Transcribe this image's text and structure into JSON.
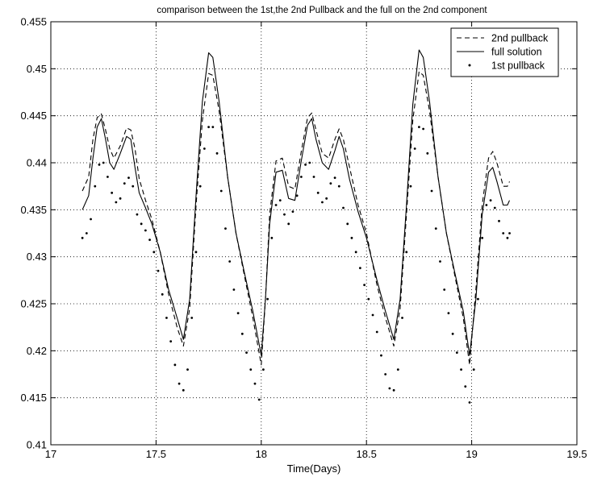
{
  "chart_data": {
    "type": "line",
    "title": "comparison between the 1st,the 2nd Pullback and the full on the 2nd component",
    "xlabel": "Time(Days)",
    "ylabel": "",
    "xlim": [
      17,
      19.5
    ],
    "ylim": [
      0.41,
      0.455
    ],
    "xticks": [
      17,
      17.5,
      18,
      18.5,
      19,
      19.5
    ],
    "xtick_labels": [
      "17",
      "17.5",
      "18",
      "18.5",
      "19",
      "19.5"
    ],
    "yticks": [
      0.41,
      0.415,
      0.42,
      0.425,
      0.43,
      0.435,
      0.44,
      0.445,
      0.45,
      0.455
    ],
    "ytick_labels": [
      "0.41",
      "0.415",
      "0.42",
      "0.425",
      "0.43",
      "0.435",
      "0.44",
      "0.445",
      "0.45",
      "0.455"
    ],
    "grid": true,
    "legend_position": "top-right",
    "series": [
      {
        "name": "2nd pullback",
        "style": "dashed",
        "color": "#000000",
        "points": [
          [
            17.15,
            0.437
          ],
          [
            17.18,
            0.4385
          ],
          [
            17.2,
            0.4425
          ],
          [
            17.22,
            0.4448
          ],
          [
            17.24,
            0.4452
          ],
          [
            17.26,
            0.4435
          ],
          [
            17.28,
            0.4415
          ],
          [
            17.3,
            0.4405
          ],
          [
            17.33,
            0.4418
          ],
          [
            17.36,
            0.4437
          ],
          [
            17.38,
            0.4435
          ],
          [
            17.4,
            0.4415
          ],
          [
            17.42,
            0.4383
          ],
          [
            17.45,
            0.436
          ],
          [
            17.48,
            0.434
          ],
          [
            17.52,
            0.4305
          ],
          [
            17.56,
            0.426
          ],
          [
            17.6,
            0.4225
          ],
          [
            17.63,
            0.4205
          ],
          [
            17.66,
            0.4245
          ],
          [
            17.69,
            0.4355
          ],
          [
            17.72,
            0.4445
          ],
          [
            17.75,
            0.4495
          ],
          [
            17.77,
            0.4493
          ],
          [
            17.8,
            0.4455
          ],
          [
            17.84,
            0.4385
          ],
          [
            17.88,
            0.4325
          ],
          [
            17.92,
            0.428
          ],
          [
            17.96,
            0.4235
          ],
          [
            18,
            0.4185
          ],
          [
            18.02,
            0.4255
          ],
          [
            18.04,
            0.4345
          ],
          [
            18.07,
            0.4402
          ],
          [
            18.1,
            0.4405
          ],
          [
            18.13,
            0.4375
          ],
          [
            18.16,
            0.4372
          ],
          [
            18.19,
            0.4412
          ],
          [
            18.22,
            0.4448
          ],
          [
            18.24,
            0.4453
          ],
          [
            18.26,
            0.4435
          ],
          [
            18.29,
            0.441
          ],
          [
            18.32,
            0.4405
          ],
          [
            18.35,
            0.4425
          ],
          [
            18.37,
            0.4436
          ],
          [
            18.39,
            0.4425
          ],
          [
            18.42,
            0.4395
          ],
          [
            18.46,
            0.4355
          ],
          [
            18.5,
            0.4325
          ],
          [
            18.55,
            0.427
          ],
          [
            18.59,
            0.4235
          ],
          [
            18.63,
            0.4205
          ],
          [
            18.66,
            0.4245
          ],
          [
            18.69,
            0.4345
          ],
          [
            18.72,
            0.4445
          ],
          [
            18.75,
            0.4497
          ],
          [
            18.77,
            0.4493
          ],
          [
            18.8,
            0.4455
          ],
          [
            18.84,
            0.4385
          ],
          [
            18.88,
            0.4325
          ],
          [
            18.92,
            0.428
          ],
          [
            18.96,
            0.4235
          ],
          [
            18.99,
            0.4185
          ],
          [
            19.02,
            0.4265
          ],
          [
            19.05,
            0.4355
          ],
          [
            19.08,
            0.4405
          ],
          [
            19.1,
            0.4412
          ],
          [
            19.12,
            0.44
          ],
          [
            19.15,
            0.4375
          ],
          [
            19.17,
            0.4375
          ],
          [
            19.18,
            0.438
          ]
        ]
      },
      {
        "name": "full solution",
        "style": "solid",
        "color": "#000000",
        "points": [
          [
            17.15,
            0.435
          ],
          [
            17.18,
            0.4365
          ],
          [
            17.2,
            0.4405
          ],
          [
            17.22,
            0.4438
          ],
          [
            17.24,
            0.4447
          ],
          [
            17.26,
            0.4425
          ],
          [
            17.28,
            0.44
          ],
          [
            17.3,
            0.4393
          ],
          [
            17.33,
            0.441
          ],
          [
            17.36,
            0.4428
          ],
          [
            17.38,
            0.4425
          ],
          [
            17.4,
            0.4395
          ],
          [
            17.42,
            0.4368
          ],
          [
            17.45,
            0.4352
          ],
          [
            17.48,
            0.4335
          ],
          [
            17.52,
            0.4305
          ],
          [
            17.56,
            0.4265
          ],
          [
            17.6,
            0.4235
          ],
          [
            17.63,
            0.4212
          ],
          [
            17.66,
            0.4255
          ],
          [
            17.69,
            0.4365
          ],
          [
            17.72,
            0.4465
          ],
          [
            17.75,
            0.4517
          ],
          [
            17.77,
            0.4512
          ],
          [
            17.8,
            0.4465
          ],
          [
            17.84,
            0.4385
          ],
          [
            17.88,
            0.4325
          ],
          [
            17.92,
            0.4283
          ],
          [
            17.96,
            0.4242
          ],
          [
            18,
            0.4195
          ],
          [
            18.02,
            0.4255
          ],
          [
            18.04,
            0.4335
          ],
          [
            18.07,
            0.439
          ],
          [
            18.1,
            0.4392
          ],
          [
            18.13,
            0.4362
          ],
          [
            18.16,
            0.436
          ],
          [
            18.19,
            0.4402
          ],
          [
            18.22,
            0.444
          ],
          [
            18.24,
            0.4447
          ],
          [
            18.26,
            0.4425
          ],
          [
            18.29,
            0.44
          ],
          [
            18.32,
            0.4393
          ],
          [
            18.35,
            0.4413
          ],
          [
            18.37,
            0.4428
          ],
          [
            18.39,
            0.4415
          ],
          [
            18.42,
            0.4382
          ],
          [
            18.46,
            0.4348
          ],
          [
            18.5,
            0.432
          ],
          [
            18.55,
            0.4275
          ],
          [
            18.59,
            0.4242
          ],
          [
            18.63,
            0.4212
          ],
          [
            18.66,
            0.4255
          ],
          [
            18.69,
            0.4355
          ],
          [
            18.72,
            0.4462
          ],
          [
            18.75,
            0.452
          ],
          [
            18.77,
            0.4512
          ],
          [
            18.8,
            0.4465
          ],
          [
            18.84,
            0.4385
          ],
          [
            18.88,
            0.4325
          ],
          [
            18.92,
            0.4283
          ],
          [
            18.96,
            0.4242
          ],
          [
            18.99,
            0.4195
          ],
          [
            19.02,
            0.4255
          ],
          [
            19.05,
            0.4345
          ],
          [
            19.08,
            0.439
          ],
          [
            19.1,
            0.4395
          ],
          [
            19.12,
            0.438
          ],
          [
            19.15,
            0.4355
          ],
          [
            19.17,
            0.4355
          ],
          [
            19.18,
            0.436
          ]
        ]
      },
      {
        "name": "1st pullback",
        "style": "dotted",
        "color": "#000000",
        "points": [
          [
            17.15,
            0.432
          ],
          [
            17.17,
            0.4325
          ],
          [
            17.19,
            0.434
          ],
          [
            17.21,
            0.4375
          ],
          [
            17.23,
            0.4398
          ],
          [
            17.25,
            0.44
          ],
          [
            17.27,
            0.4385
          ],
          [
            17.29,
            0.4368
          ],
          [
            17.31,
            0.4358
          ],
          [
            17.33,
            0.4362
          ],
          [
            17.35,
            0.4378
          ],
          [
            17.37,
            0.4384
          ],
          [
            17.39,
            0.4375
          ],
          [
            17.41,
            0.4345
          ],
          [
            17.43,
            0.4335
          ],
          [
            17.45,
            0.4328
          ],
          [
            17.47,
            0.4318
          ],
          [
            17.49,
            0.4305
          ],
          [
            17.51,
            0.4285
          ],
          [
            17.53,
            0.426
          ],
          [
            17.55,
            0.4235
          ],
          [
            17.57,
            0.421
          ],
          [
            17.59,
            0.4185
          ],
          [
            17.61,
            0.4165
          ],
          [
            17.63,
            0.4158
          ],
          [
            17.65,
            0.418
          ],
          [
            17.67,
            0.4235
          ],
          [
            17.69,
            0.4305
          ],
          [
            17.71,
            0.4375
          ],
          [
            17.73,
            0.4415
          ],
          [
            17.75,
            0.4438
          ],
          [
            17.77,
            0.4438
          ],
          [
            17.79,
            0.441
          ],
          [
            17.81,
            0.437
          ],
          [
            17.83,
            0.433
          ],
          [
            17.85,
            0.4295
          ],
          [
            17.87,
            0.4265
          ],
          [
            17.89,
            0.424
          ],
          [
            17.91,
            0.4218
          ],
          [
            17.93,
            0.4198
          ],
          [
            17.95,
            0.418
          ],
          [
            17.97,
            0.4165
          ],
          [
            17.99,
            0.4148
          ],
          [
            18.01,
            0.418
          ],
          [
            18.03,
            0.4255
          ],
          [
            18.05,
            0.432
          ],
          [
            18.07,
            0.4355
          ],
          [
            18.09,
            0.436
          ],
          [
            18.11,
            0.4345
          ],
          [
            18.13,
            0.4335
          ],
          [
            18.15,
            0.4348
          ],
          [
            18.17,
            0.4365
          ],
          [
            18.19,
            0.4385
          ],
          [
            18.21,
            0.4398
          ],
          [
            18.23,
            0.44
          ],
          [
            18.25,
            0.4385
          ],
          [
            18.27,
            0.4368
          ],
          [
            18.29,
            0.4358
          ],
          [
            18.31,
            0.4362
          ],
          [
            18.33,
            0.4378
          ],
          [
            18.35,
            0.4384
          ],
          [
            18.37,
            0.4375
          ],
          [
            18.39,
            0.4352
          ],
          [
            18.41,
            0.4335
          ],
          [
            18.43,
            0.432
          ],
          [
            18.45,
            0.4305
          ],
          [
            18.47,
            0.4288
          ],
          [
            18.49,
            0.427
          ],
          [
            18.51,
            0.4255
          ],
          [
            18.53,
            0.4238
          ],
          [
            18.55,
            0.422
          ],
          [
            18.57,
            0.4195
          ],
          [
            18.59,
            0.4175
          ],
          [
            18.61,
            0.416
          ],
          [
            18.63,
            0.4158
          ],
          [
            18.65,
            0.418
          ],
          [
            18.67,
            0.4235
          ],
          [
            18.69,
            0.4305
          ],
          [
            18.71,
            0.4375
          ],
          [
            18.73,
            0.4415
          ],
          [
            18.75,
            0.4438
          ],
          [
            18.77,
            0.4436
          ],
          [
            18.79,
            0.441
          ],
          [
            18.81,
            0.437
          ],
          [
            18.83,
            0.433
          ],
          [
            18.85,
            0.4295
          ],
          [
            18.87,
            0.4265
          ],
          [
            18.89,
            0.424
          ],
          [
            18.91,
            0.4218
          ],
          [
            18.93,
            0.4198
          ],
          [
            18.95,
            0.418
          ],
          [
            18.97,
            0.4162
          ],
          [
            18.99,
            0.4145
          ],
          [
            19.01,
            0.418
          ],
          [
            19.03,
            0.4255
          ],
          [
            19.05,
            0.432
          ],
          [
            19.07,
            0.4355
          ],
          [
            19.09,
            0.436
          ],
          [
            19.11,
            0.4352
          ],
          [
            19.13,
            0.4338
          ],
          [
            19.15,
            0.4325
          ],
          [
            19.17,
            0.432
          ],
          [
            19.18,
            0.4325
          ]
        ]
      }
    ]
  }
}
